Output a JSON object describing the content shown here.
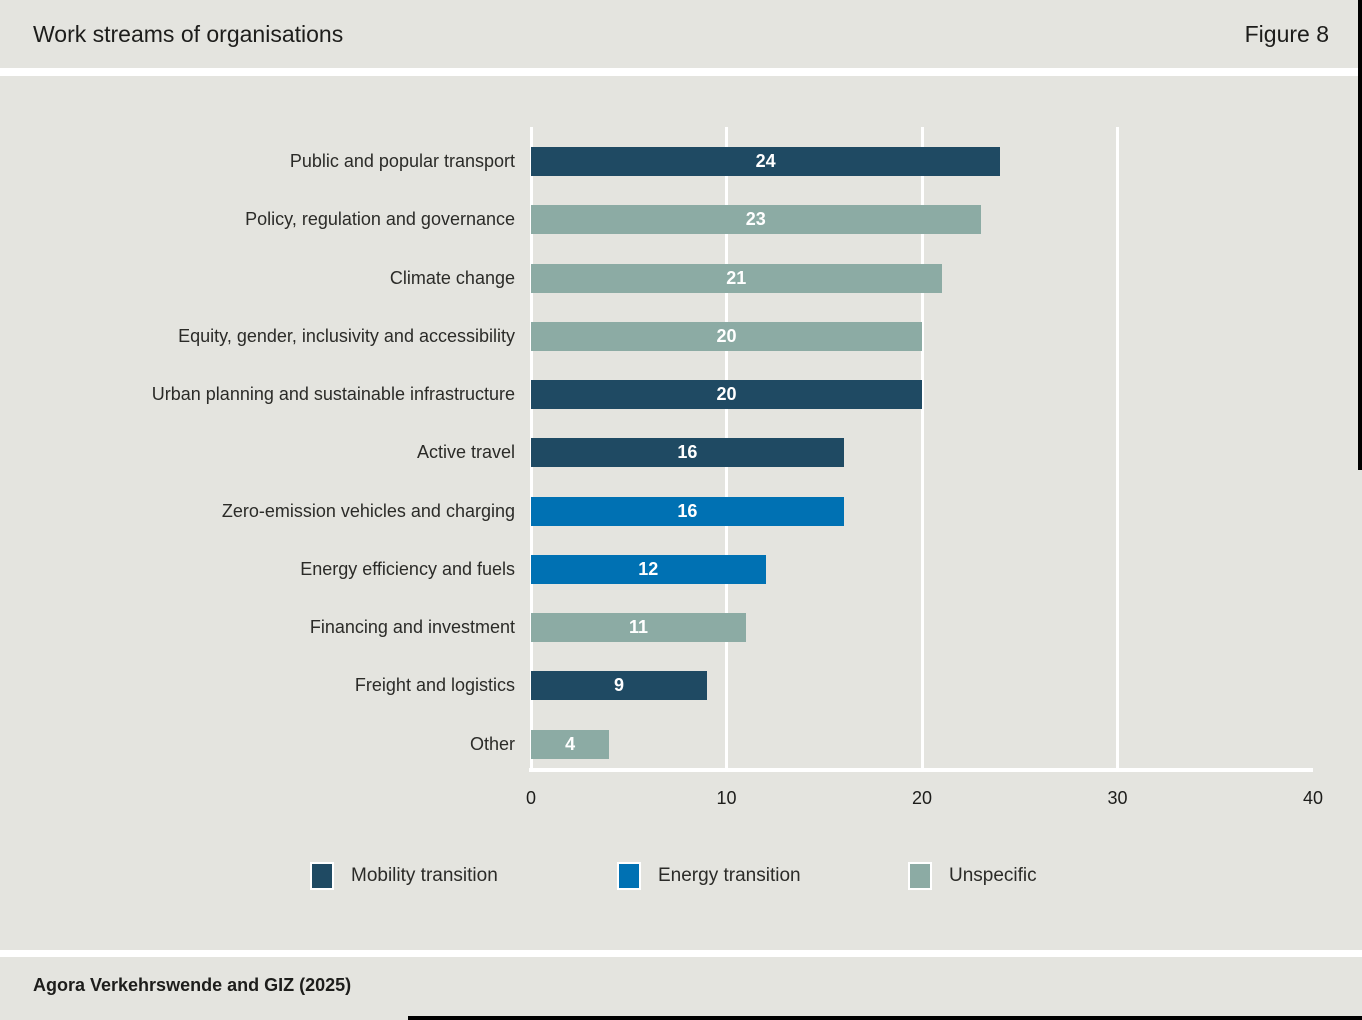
{
  "header": {
    "title": "Work streams of organisations",
    "figure_label": "Figure 8"
  },
  "footer": {
    "source": "Agora Verkehrswende and GIZ (2025)"
  },
  "colors": {
    "background": "#e4e4df",
    "mobility": "#1f4a63",
    "energy": "#0071b3",
    "unspecific": "#8caba4",
    "bar_label": "#ffffff",
    "grid": "#ffffff",
    "accent": "#000000"
  },
  "chart_data": {
    "type": "bar",
    "orientation": "horizontal",
    "title": "Work streams of organisations",
    "xlabel": "",
    "ylabel": "",
    "xlim": [
      0,
      40
    ],
    "xticks": [
      0,
      10,
      20,
      30,
      40
    ],
    "grid": "vertical",
    "categories": [
      "Public and popular transport",
      "Policy, regulation and governance",
      "Climate change",
      "Equity, gender, inclusivity and accessibility",
      "Urban planning and sustainable infrastructure",
      "Active travel",
      "Zero-emission vehicles and charging",
      "Energy efficiency and fuels",
      "Financing and investment",
      "Freight and logistics",
      "Other"
    ],
    "values": [
      24,
      23,
      21,
      20,
      20,
      16,
      16,
      12,
      11,
      9,
      4
    ],
    "groups": [
      "mobility",
      "unspecific",
      "unspecific",
      "unspecific",
      "mobility",
      "mobility",
      "energy",
      "energy",
      "unspecific",
      "mobility",
      "unspecific"
    ],
    "legend_position": "bottom",
    "legend": [
      {
        "key": "mobility",
        "label": "Mobility transition"
      },
      {
        "key": "energy",
        "label": "Energy transition"
      },
      {
        "key": "unspecific",
        "label": "Unspecific"
      }
    ]
  }
}
